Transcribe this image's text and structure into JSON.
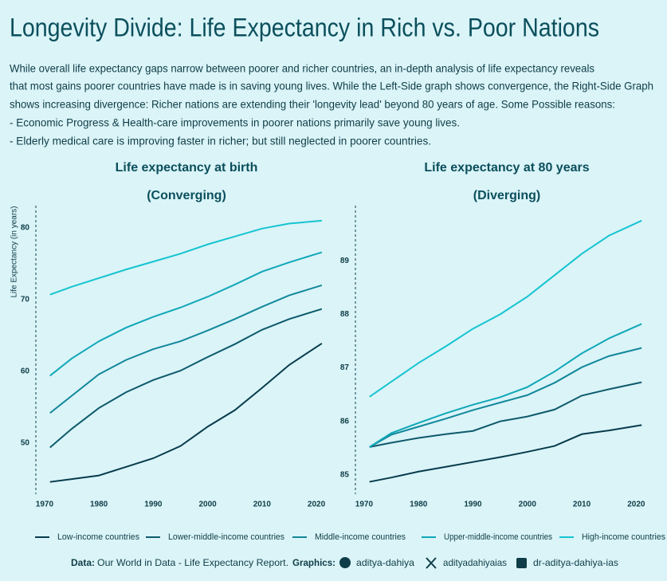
{
  "header": {
    "title": "Longevity Divide: Life Expectancy in Rich vs. Poor Nations",
    "subtitle": [
      "While overall life expectancy gaps narrow between poorer and richer countries, an in-depth analysis of life expectancy reveals",
      "that most gains poorer countries have made is in saving young lives. While the Left-Side graph shows convergence, the Right-Side Graph",
      "shows increasing divergence: Richer nations are extending their 'longevity lead' beyond 80 years of age. Some Possible reasons:",
      "-   Economic Progress & Health-care improvements in poorer nations primarily save young lives.",
      "-   Elderly medical care is improving faster in richer; but still neglected in poorer countries."
    ]
  },
  "chart_data": [
    {
      "type": "line",
      "title": "Life expectancy at birth",
      "subtitle": "(Converging)",
      "y_label": "Life Expectancy (in years)",
      "x": [
        1971,
        1975,
        1980,
        1985,
        1990,
        1995,
        2000,
        2005,
        2010,
        2015,
        2021
      ],
      "xlim": [
        1968.4,
        2021.9
      ],
      "xticks": [
        1970,
        1980,
        1990,
        2000,
        2010,
        2020
      ],
      "ylim": [
        42.9,
        83.1
      ],
      "yticks": [
        50,
        60,
        70,
        80
      ],
      "series": [
        {
          "name": "Low-income countries",
          "color": "#073b4c",
          "values": [
            44.6,
            45.0,
            45.5,
            46.7,
            47.9,
            49.6,
            52.3,
            54.6,
            57.7,
            60.9,
            63.9
          ]
        },
        {
          "name": "Lower-middle-income countries",
          "color": "#0e5a6b",
          "values": [
            49.4,
            52.0,
            54.9,
            57.1,
            58.8,
            60.1,
            62.0,
            63.8,
            65.8,
            67.3,
            68.7
          ]
        },
        {
          "name": "Middle-income countries",
          "color": "#12879a",
          "values": [
            54.2,
            56.6,
            59.6,
            61.6,
            63.1,
            64.2,
            65.7,
            67.3,
            69.0,
            70.6,
            72.0
          ]
        },
        {
          "name": "Upper-middle-income countries",
          "color": "#10a7b8",
          "values": [
            59.4,
            61.8,
            64.2,
            66.1,
            67.6,
            68.9,
            70.4,
            72.1,
            73.9,
            75.2,
            76.6
          ]
        },
        {
          "name": "High-income countries",
          "color": "#15c4d0",
          "values": [
            70.7,
            71.8,
            73.0,
            74.2,
            75.3,
            76.4,
            77.7,
            78.8,
            79.9,
            80.6,
            81.0
          ]
        }
      ]
    },
    {
      "type": "line",
      "title": "Life expectancy at 80 years",
      "subtitle": "(Diverging)",
      "x": [
        1971,
        1975,
        1980,
        1985,
        1990,
        1995,
        2000,
        2005,
        2010,
        2015,
        2021
      ],
      "xlim": [
        1968.4,
        2022
      ],
      "xticks": [
        1970,
        1980,
        1990,
        2000,
        2010,
        2020
      ],
      "ylim": [
        84.64,
        90.03
      ],
      "yticks": [
        85,
        86,
        87,
        88,
        89
      ],
      "series": [
        {
          "color": "#073b4c",
          "values": [
            84.87,
            84.95,
            85.06,
            85.15,
            85.24,
            85.33,
            85.43,
            85.54,
            85.76,
            85.83,
            85.93
          ]
        },
        {
          "color": "#0e5a6b",
          "values": [
            85.52,
            85.6,
            85.69,
            85.76,
            85.82,
            86.0,
            86.09,
            86.22,
            86.48,
            86.6,
            86.73
          ]
        },
        {
          "color": "#12879a",
          "values": [
            85.52,
            85.75,
            85.9,
            86.05,
            86.21,
            86.35,
            86.49,
            86.72,
            87.01,
            87.22,
            87.37
          ]
        },
        {
          "color": "#10a7b8",
          "values": [
            85.52,
            85.78,
            85.97,
            86.15,
            86.31,
            86.45,
            86.64,
            86.93,
            87.27,
            87.55,
            87.82
          ]
        },
        {
          "color": "#15c4d0",
          "values": [
            86.46,
            86.74,
            87.09,
            87.4,
            87.73,
            88.0,
            88.33,
            88.73,
            89.13,
            89.47,
            89.75
          ]
        }
      ]
    }
  ],
  "caption": {
    "data_label": "Data:",
    "data_text": "Our World in Data  - Life Expectancy Report.",
    "graphics_label": "Graphics:",
    "github": "aditya-dahiya",
    "x_handle": "adityadahiyaias",
    "linkedin": "dr-aditya-dahiya-ias"
  }
}
